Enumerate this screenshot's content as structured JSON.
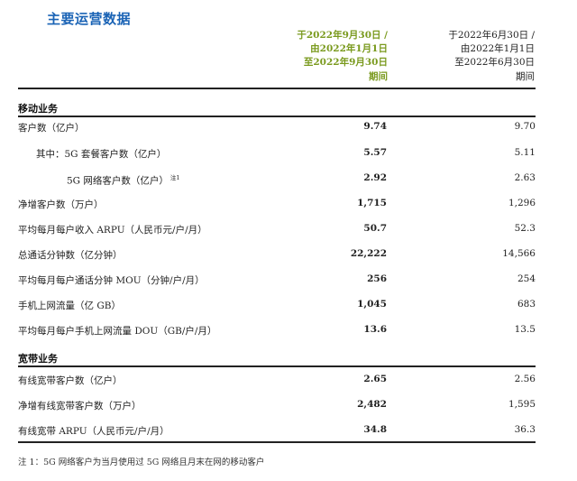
{
  "title": "主要运营数据",
  "header": {
    "current": [
      "于2022年9月30日 /",
      "由2022年1月1日",
      "至2022年9月30日",
      "期间"
    ],
    "previous": [
      "于2022年6月30日 /",
      "由2022年1月1日",
      "至2022年6月30日",
      "期间"
    ]
  },
  "sections": [
    {
      "name": "移动业务",
      "rows": [
        {
          "label": "客户数（亿户）",
          "cur": "9.74",
          "prev": "9.70"
        },
        {
          "label": "其中：5G 套餐客户数（亿户）",
          "cur": "5.57",
          "prev": "5.11"
        },
        {
          "label": "5G 网络客户数（亿户）",
          "sup": "注1",
          "cur": "2.92",
          "prev": "2.63"
        },
        {
          "label": "净增客户数（万户）",
          "cur": "1,715",
          "prev": "1,296"
        },
        {
          "label": "平均每月每户收入 ARPU（人民币元/户/月）",
          "cur": "50.7",
          "prev": "52.3"
        },
        {
          "label": "总通话分钟数（亿分钟）",
          "cur": "22,222",
          "prev": "14,566"
        },
        {
          "label": "平均每月每户通话分钟 MOU（分钟/户/月）",
          "cur": "256",
          "prev": "254"
        },
        {
          "label": "手机上网流量（亿 GB）",
          "cur": "1,045",
          "prev": "683"
        },
        {
          "label": "平均每月每户手机上网流量 DOU（GB/户/月）",
          "cur": "13.6",
          "prev": "13.5"
        }
      ]
    },
    {
      "name": "宽带业务",
      "rows": [
        {
          "label": "有线宽带客户数（亿户）",
          "cur": "2.65",
          "prev": "2.56"
        },
        {
          "label": "净增有线宽带客户数（万户）",
          "cur": "2,482",
          "prev": "1,595"
        },
        {
          "label": "有线宽带 ARPU（人民币元/户/月）",
          "cur": "34.8",
          "prev": "36.3"
        }
      ]
    }
  ],
  "footnote": "注 1：5G 网络客户为当月使用过 5G 网络且月末在网的移动客户",
  "colors": {
    "title": "#1a63b5",
    "current_header": "#7a9a1e"
  }
}
